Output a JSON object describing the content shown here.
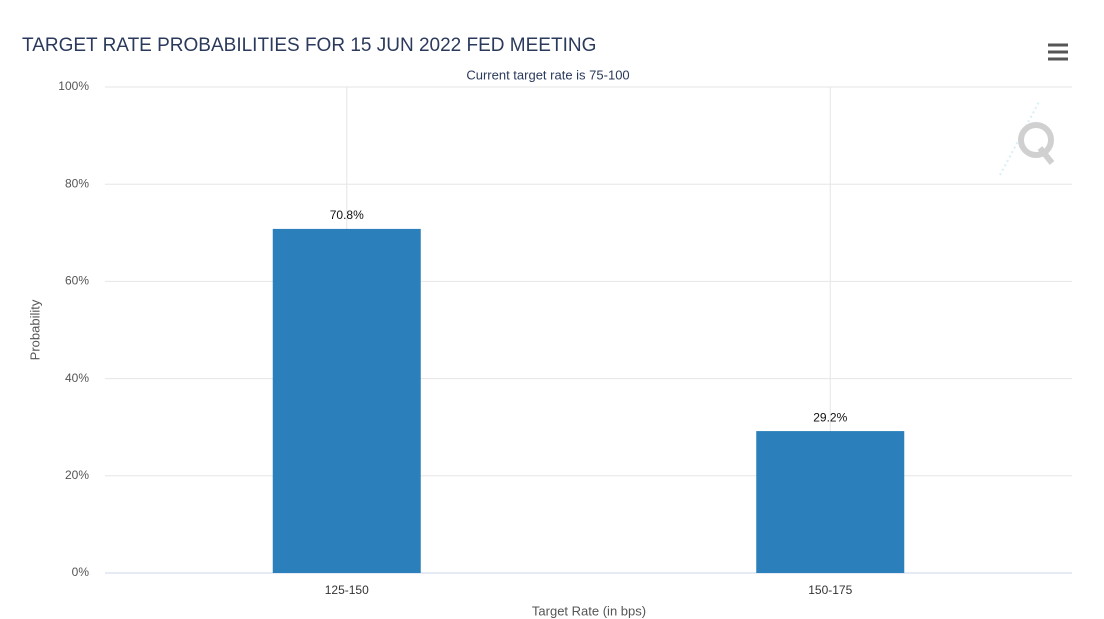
{
  "chart_data": {
    "type": "bar",
    "title": "TARGET RATE PROBABILITIES FOR 15 JUN 2022 FED MEETING",
    "subtitle": "Current target rate is 75-100",
    "x_label": "Target Rate (in bps)",
    "y_label": "Probability",
    "categories": [
      "125-150",
      "150-175"
    ],
    "values": [
      70.8,
      29.2
    ],
    "value_labels": [
      "70.8%",
      "29.2%"
    ],
    "color": "#2b7fba",
    "ylim": [
      0,
      100
    ],
    "yticks": [
      {
        "value": 0,
        "label": "0%"
      },
      {
        "value": 20,
        "label": "20%"
      },
      {
        "value": 40,
        "label": "40%"
      },
      {
        "value": 60,
        "label": "60%"
      },
      {
        "value": 80,
        "label": "80%"
      },
      {
        "value": 100,
        "label": "100%"
      }
    ],
    "grid": true
  }
}
